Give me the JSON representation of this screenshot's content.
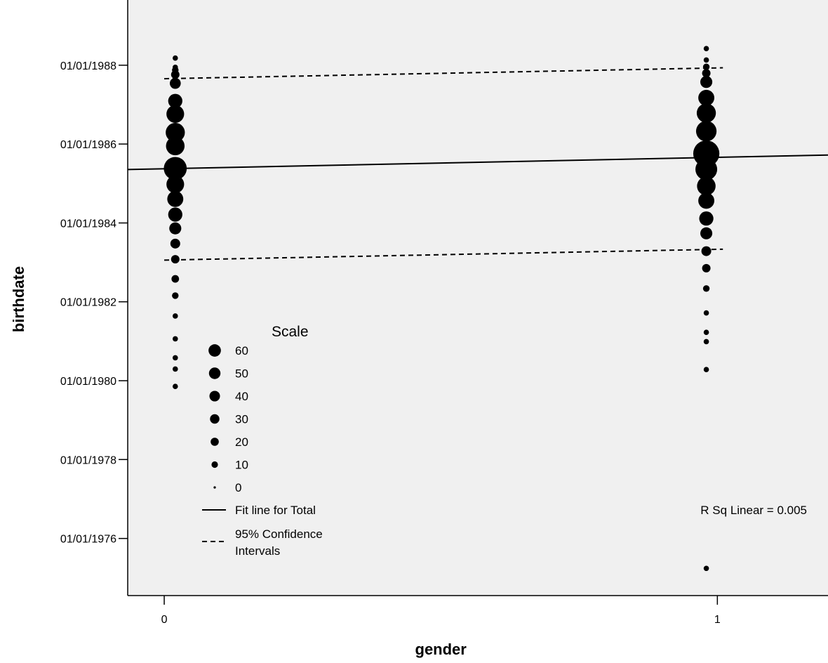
{
  "chart_data": {
    "type": "scatter",
    "xlabel": "gender",
    "ylabel": "birthdate",
    "x_ticks": [
      0,
      1
    ],
    "x_tick_labels": [
      "0",
      "1"
    ],
    "xlim": [
      -0.066,
      1.2
    ],
    "y_ticks": [
      "1976-01-01",
      "1978-01-01",
      "1980-01-01",
      "1982-01-01",
      "1984-01-01",
      "1986-01-01",
      "1988-01-01"
    ],
    "y_tick_labels": [
      "01/01/1976",
      "01/01/1978",
      "01/01/1980",
      "01/01/1982",
      "01/01/1984",
      "01/01/1986",
      "01/01/1988"
    ],
    "ylim": [
      "1974-07-21",
      "1989-08-27"
    ],
    "grid": false,
    "plot_background": "#f0f0f0",
    "series": [
      {
        "x": 0.02,
        "points": [
          {
            "date": "1988-03-07",
            "count": 1
          },
          {
            "date": "1987-12-13",
            "count": 1
          },
          {
            "date": "1987-11-17",
            "count": 2
          },
          {
            "date": "1987-10-06",
            "count": 4
          },
          {
            "date": "1987-07-17",
            "count": 8
          },
          {
            "date": "1987-02-04",
            "count": 15
          },
          {
            "date": "1986-10-06",
            "count": 25
          },
          {
            "date": "1986-04-18",
            "count": 30
          },
          {
            "date": "1985-12-14",
            "count": 28
          },
          {
            "date": "1985-05-20",
            "count": 45
          },
          {
            "date": "1984-12-24",
            "count": 25
          },
          {
            "date": "1984-08-10",
            "count": 20
          },
          {
            "date": "1984-03-19",
            "count": 15
          },
          {
            "date": "1983-11-12",
            "count": 10
          },
          {
            "date": "1983-06-24",
            "count": 6
          },
          {
            "date": "1983-01-30",
            "count": 4
          },
          {
            "date": "1982-08-01",
            "count": 3
          },
          {
            "date": "1982-02-27",
            "count": 2
          },
          {
            "date": "1981-08-22",
            "count": 1
          },
          {
            "date": "1981-01-23",
            "count": 1
          },
          {
            "date": "1980-07-31",
            "count": 1
          },
          {
            "date": "1980-04-18",
            "count": 1
          },
          {
            "date": "1979-11-09",
            "count": 1
          }
        ]
      },
      {
        "x": 0.98,
        "points": [
          {
            "date": "1988-06-03",
            "count": 1
          },
          {
            "date": "1988-02-18",
            "count": 1
          },
          {
            "date": "1987-12-17",
            "count": 2
          },
          {
            "date": "1987-10-19",
            "count": 4
          },
          {
            "date": "1987-07-30",
            "count": 10
          },
          {
            "date": "1987-03-05",
            "count": 20
          },
          {
            "date": "1986-10-15",
            "count": 30
          },
          {
            "date": "1986-04-30",
            "count": 35
          },
          {
            "date": "1985-10-05",
            "count": 60
          },
          {
            "date": "1985-05-12",
            "count": 40
          },
          {
            "date": "1984-12-08",
            "count": 28
          },
          {
            "date": "1984-07-25",
            "count": 20
          },
          {
            "date": "1984-02-11",
            "count": 15
          },
          {
            "date": "1983-09-27",
            "count": 10
          },
          {
            "date": "1983-04-15",
            "count": 6
          },
          {
            "date": "1982-11-08",
            "count": 4
          },
          {
            "date": "1982-05-04",
            "count": 2
          },
          {
            "date": "1981-09-20",
            "count": 1
          },
          {
            "date": "1981-03-24",
            "count": 1
          },
          {
            "date": "1980-12-28",
            "count": 1
          },
          {
            "date": "1980-04-13",
            "count": 1
          },
          {
            "date": "1975-03-30",
            "count": 1
          }
        ]
      }
    ],
    "fit_line": {
      "x": [
        -0.066,
        1.2
      ],
      "y": [
        "1985-05-10",
        "1985-09-21"
      ]
    },
    "ci_lower": {
      "x": [
        0,
        1.01
      ],
      "y": [
        "1983-01-22",
        "1983-05-03"
      ]
    },
    "ci_upper": {
      "x": [
        0,
        1.01
      ],
      "y": [
        "1987-08-29",
        "1987-12-08"
      ]
    },
    "legend": {
      "placement": "lower-left",
      "title": "Scale",
      "sizes": [
        60,
        50,
        40,
        30,
        20,
        10,
        0
      ],
      "size_labels": [
        "60",
        "50",
        "40",
        "30",
        "20",
        "10",
        "0"
      ],
      "fit_label": "Fit line for Total",
      "ci_label_line1": "95% Confidence",
      "ci_label_line2": "Intervals"
    },
    "annotation": "R Sq Linear = 0.005"
  }
}
